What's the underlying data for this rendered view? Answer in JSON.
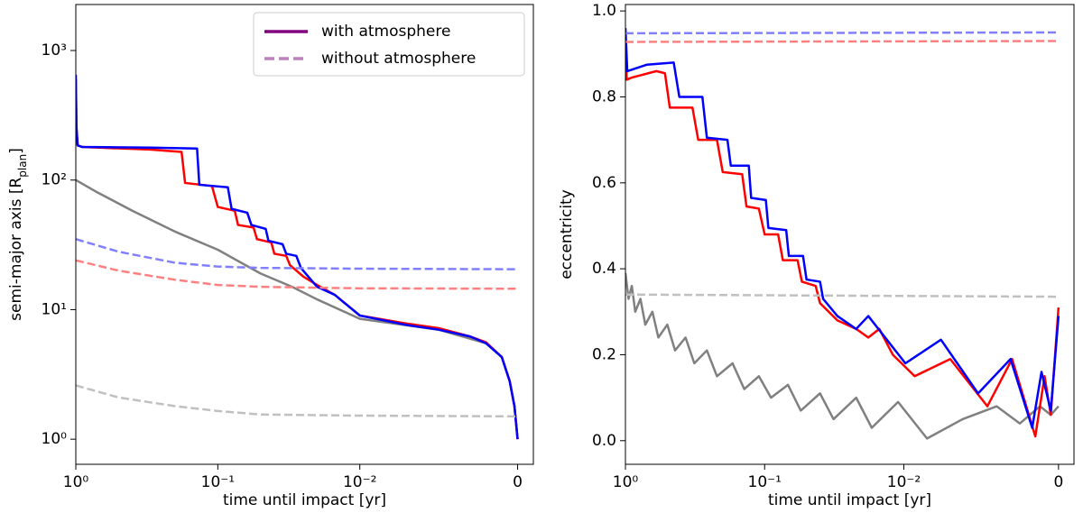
{
  "chart_data": [
    {
      "type": "line",
      "xlabel": "time until impact [yr]",
      "ylabel": [
        "semi-major axis [R",
        "plan",
        "]"
      ],
      "xscale": "symlog",
      "linthresh": 0.01,
      "xlim": [
        1,
        -0.001
      ],
      "xticks": [
        {
          "value": 1,
          "label": "10⁰"
        },
        {
          "value": 0.1,
          "label": "10⁻¹"
        },
        {
          "value": 0.01,
          "label": "10⁻²"
        },
        0
      ],
      "yscale": "log",
      "ylim": [
        0.64,
        2265
      ],
      "yticks": [
        {
          "value": 1,
          "label": "10⁰"
        },
        {
          "value": 10,
          "label": "10¹"
        },
        {
          "value": 100,
          "label": "10²"
        },
        {
          "value": 1000,
          "label": "10³"
        }
      ],
      "legend": {
        "corner": "upper right",
        "entries": [
          {
            "name": "with atmosphere",
            "color": "#800080",
            "dashed": false
          },
          {
            "name": "without atmosphere",
            "color": "#bf7fbf",
            "dashed": true
          }
        ]
      },
      "series": [
        {
          "color": "#808080",
          "dashed": false,
          "x": [
            1,
            0.7,
            0.4,
            0.2,
            0.1,
            0.05,
            0.03,
            0.02,
            0.01,
            0.005,
            0.002,
            0.001,
            0.0005,
            0.0002,
            0
          ],
          "values": [
            100,
            80,
            58,
            40,
            29,
            19,
            15,
            12,
            8.5,
            7,
            5.5,
            4.3,
            2.8,
            1.8,
            1
          ]
        },
        {
          "color": "#ff0000",
          "dashed": false,
          "x": [
            1,
            0.99,
            0.97,
            0.9,
            0.3,
            0.18,
            0.17,
            0.11,
            0.1,
            0.076,
            0.072,
            0.056,
            0.053,
            0.042,
            0.04,
            0.033,
            0.031,
            0.025,
            0.02,
            0.015,
            0.01,
            0.007,
            0.005,
            0.003,
            0.002,
            0.001,
            0.0005,
            0.0002,
            0
          ],
          "values": [
            600,
            250,
            185,
            180,
            172,
            165,
            95,
            90,
            62,
            58,
            45,
            43,
            35,
            33,
            27,
            26,
            22,
            18,
            15.5,
            13,
            9,
            7.8,
            7.2,
            6.2,
            5.6,
            4.3,
            2.8,
            1.8,
            1
          ]
        },
        {
          "color": "#0000ff",
          "dashed": false,
          "x": [
            1,
            0.99,
            0.97,
            0.9,
            0.3,
            0.14,
            0.135,
            0.085,
            0.08,
            0.062,
            0.058,
            0.046,
            0.044,
            0.035,
            0.033,
            0.028,
            0.026,
            0.02,
            0.015,
            0.01,
            0.007,
            0.005,
            0.003,
            0.002,
            0.001,
            0.0005,
            0.0002,
            0
          ],
          "values": [
            650,
            260,
            185,
            180,
            178,
            175,
            92,
            88,
            60,
            56,
            45,
            42,
            34,
            32,
            27,
            26,
            21,
            15,
            13,
            9,
            7.6,
            7,
            6.2,
            5.5,
            4.3,
            2.8,
            1.8,
            1
          ]
        },
        {
          "color": "#8080ff",
          "dashed": true,
          "x": [
            1,
            0.5,
            0.2,
            0.1,
            0.05,
            0.01,
            0
          ],
          "values": [
            35,
            28,
            23,
            21.5,
            21,
            20.7,
            20.5
          ]
        },
        {
          "color": "#ff8080",
          "dashed": true,
          "x": [
            1,
            0.5,
            0.2,
            0.1,
            0.05,
            0.01,
            0
          ],
          "values": [
            24,
            20,
            17,
            15.5,
            15,
            14.6,
            14.5
          ]
        },
        {
          "color": "#c0c0c0",
          "dashed": true,
          "x": [
            1,
            0.5,
            0.2,
            0.1,
            0.05,
            0.01,
            0
          ],
          "values": [
            2.6,
            2.1,
            1.8,
            1.65,
            1.55,
            1.52,
            1.5
          ]
        }
      ]
    },
    {
      "type": "line",
      "xlabel": "time until impact [yr]",
      "ylabel": [
        "eccentricity"
      ],
      "xscale": "symlog",
      "linthresh": 0.01,
      "xlim": [
        1,
        -0.001
      ],
      "xticks": [
        {
          "value": 1,
          "label": "10⁰"
        },
        {
          "value": 0.1,
          "label": "10⁻¹"
        },
        {
          "value": 0.01,
          "label": "10⁻²"
        },
        0
      ],
      "yscale": "linear",
      "ylim": [
        -0.055,
        1.015
      ],
      "yticks": [
        {
          "value": 0,
          "label": "0.0"
        },
        0.2,
        0.4,
        0.6,
        0.8,
        {
          "value": 1,
          "label": "1.0"
        }
      ],
      "series": [
        {
          "color": "#808080",
          "dashed": false,
          "x": [
            1,
            0.95,
            0.9,
            0.85,
            0.78,
            0.72,
            0.64,
            0.58,
            0.5,
            0.44,
            0.37,
            0.32,
            0.26,
            0.22,
            0.17,
            0.14,
            0.11,
            0.09,
            0.068,
            0.055,
            0.04,
            0.032,
            0.022,
            0.017,
            0.011,
            0.0085,
            0.0062,
            0.004,
            0.0025,
            0.0012,
            0.0005,
            0
          ],
          "values": [
            0.39,
            0.33,
            0.36,
            0.3,
            0.33,
            0.27,
            0.3,
            0.24,
            0.27,
            0.21,
            0.24,
            0.18,
            0.21,
            0.15,
            0.18,
            0.12,
            0.15,
            0.1,
            0.13,
            0.07,
            0.11,
            0.05,
            0.1,
            0.03,
            0.09,
            0.005,
            0.05,
            0.08,
            0.04,
            0.08,
            0.06,
            0.08
          ]
        },
        {
          "color": "#ff0000",
          "dashed": false,
          "x": [
            1,
            0.98,
            0.9,
            0.6,
            0.52,
            0.48,
            0.33,
            0.3,
            0.22,
            0.2,
            0.145,
            0.135,
            0.11,
            0.1,
            0.08,
            0.074,
            0.058,
            0.054,
            0.043,
            0.04,
            0.03,
            0.022,
            0.018,
            0.015,
            0.012,
            0.0093,
            0.007,
            0.0046,
            0.003,
            0.0015,
            0.0009,
            0.0005,
            0
          ],
          "values": [
            0.95,
            0.84,
            0.845,
            0.86,
            0.855,
            0.775,
            0.775,
            0.7,
            0.7,
            0.625,
            0.62,
            0.545,
            0.54,
            0.48,
            0.48,
            0.42,
            0.42,
            0.37,
            0.36,
            0.32,
            0.28,
            0.26,
            0.24,
            0.26,
            0.2,
            0.15,
            0.19,
            0.08,
            0.19,
            0.01,
            0.15,
            0.06,
            0.31
          ]
        },
        {
          "color": "#0000ff",
          "dashed": false,
          "x": [
            1,
            0.97,
            0.7,
            0.45,
            0.41,
            0.28,
            0.26,
            0.185,
            0.175,
            0.13,
            0.125,
            0.098,
            0.094,
            0.07,
            0.067,
            0.053,
            0.05,
            0.04,
            0.038,
            0.03,
            0.022,
            0.018,
            0.0099,
            0.0076,
            0.0052,
            0.0031,
            0.0017,
            0.0011,
            0.0005,
            0
          ],
          "values": [
            0.96,
            0.86,
            0.875,
            0.88,
            0.8,
            0.8,
            0.705,
            0.7,
            0.64,
            0.64,
            0.565,
            0.56,
            0.495,
            0.49,
            0.43,
            0.43,
            0.375,
            0.37,
            0.33,
            0.29,
            0.26,
            0.29,
            0.18,
            0.235,
            0.11,
            0.19,
            0.03,
            0.16,
            0.07,
            0.29
          ]
        },
        {
          "color": "#8080ff",
          "dashed": true,
          "x": [
            1,
            0
          ],
          "values": [
            0.948,
            0.95
          ]
        },
        {
          "color": "#ff8080",
          "dashed": true,
          "x": [
            1,
            0
          ],
          "values": [
            0.928,
            0.93
          ]
        },
        {
          "color": "#c0c0c0",
          "dashed": true,
          "x": [
            1,
            0
          ],
          "values": [
            0.34,
            0.335
          ]
        }
      ]
    }
  ]
}
